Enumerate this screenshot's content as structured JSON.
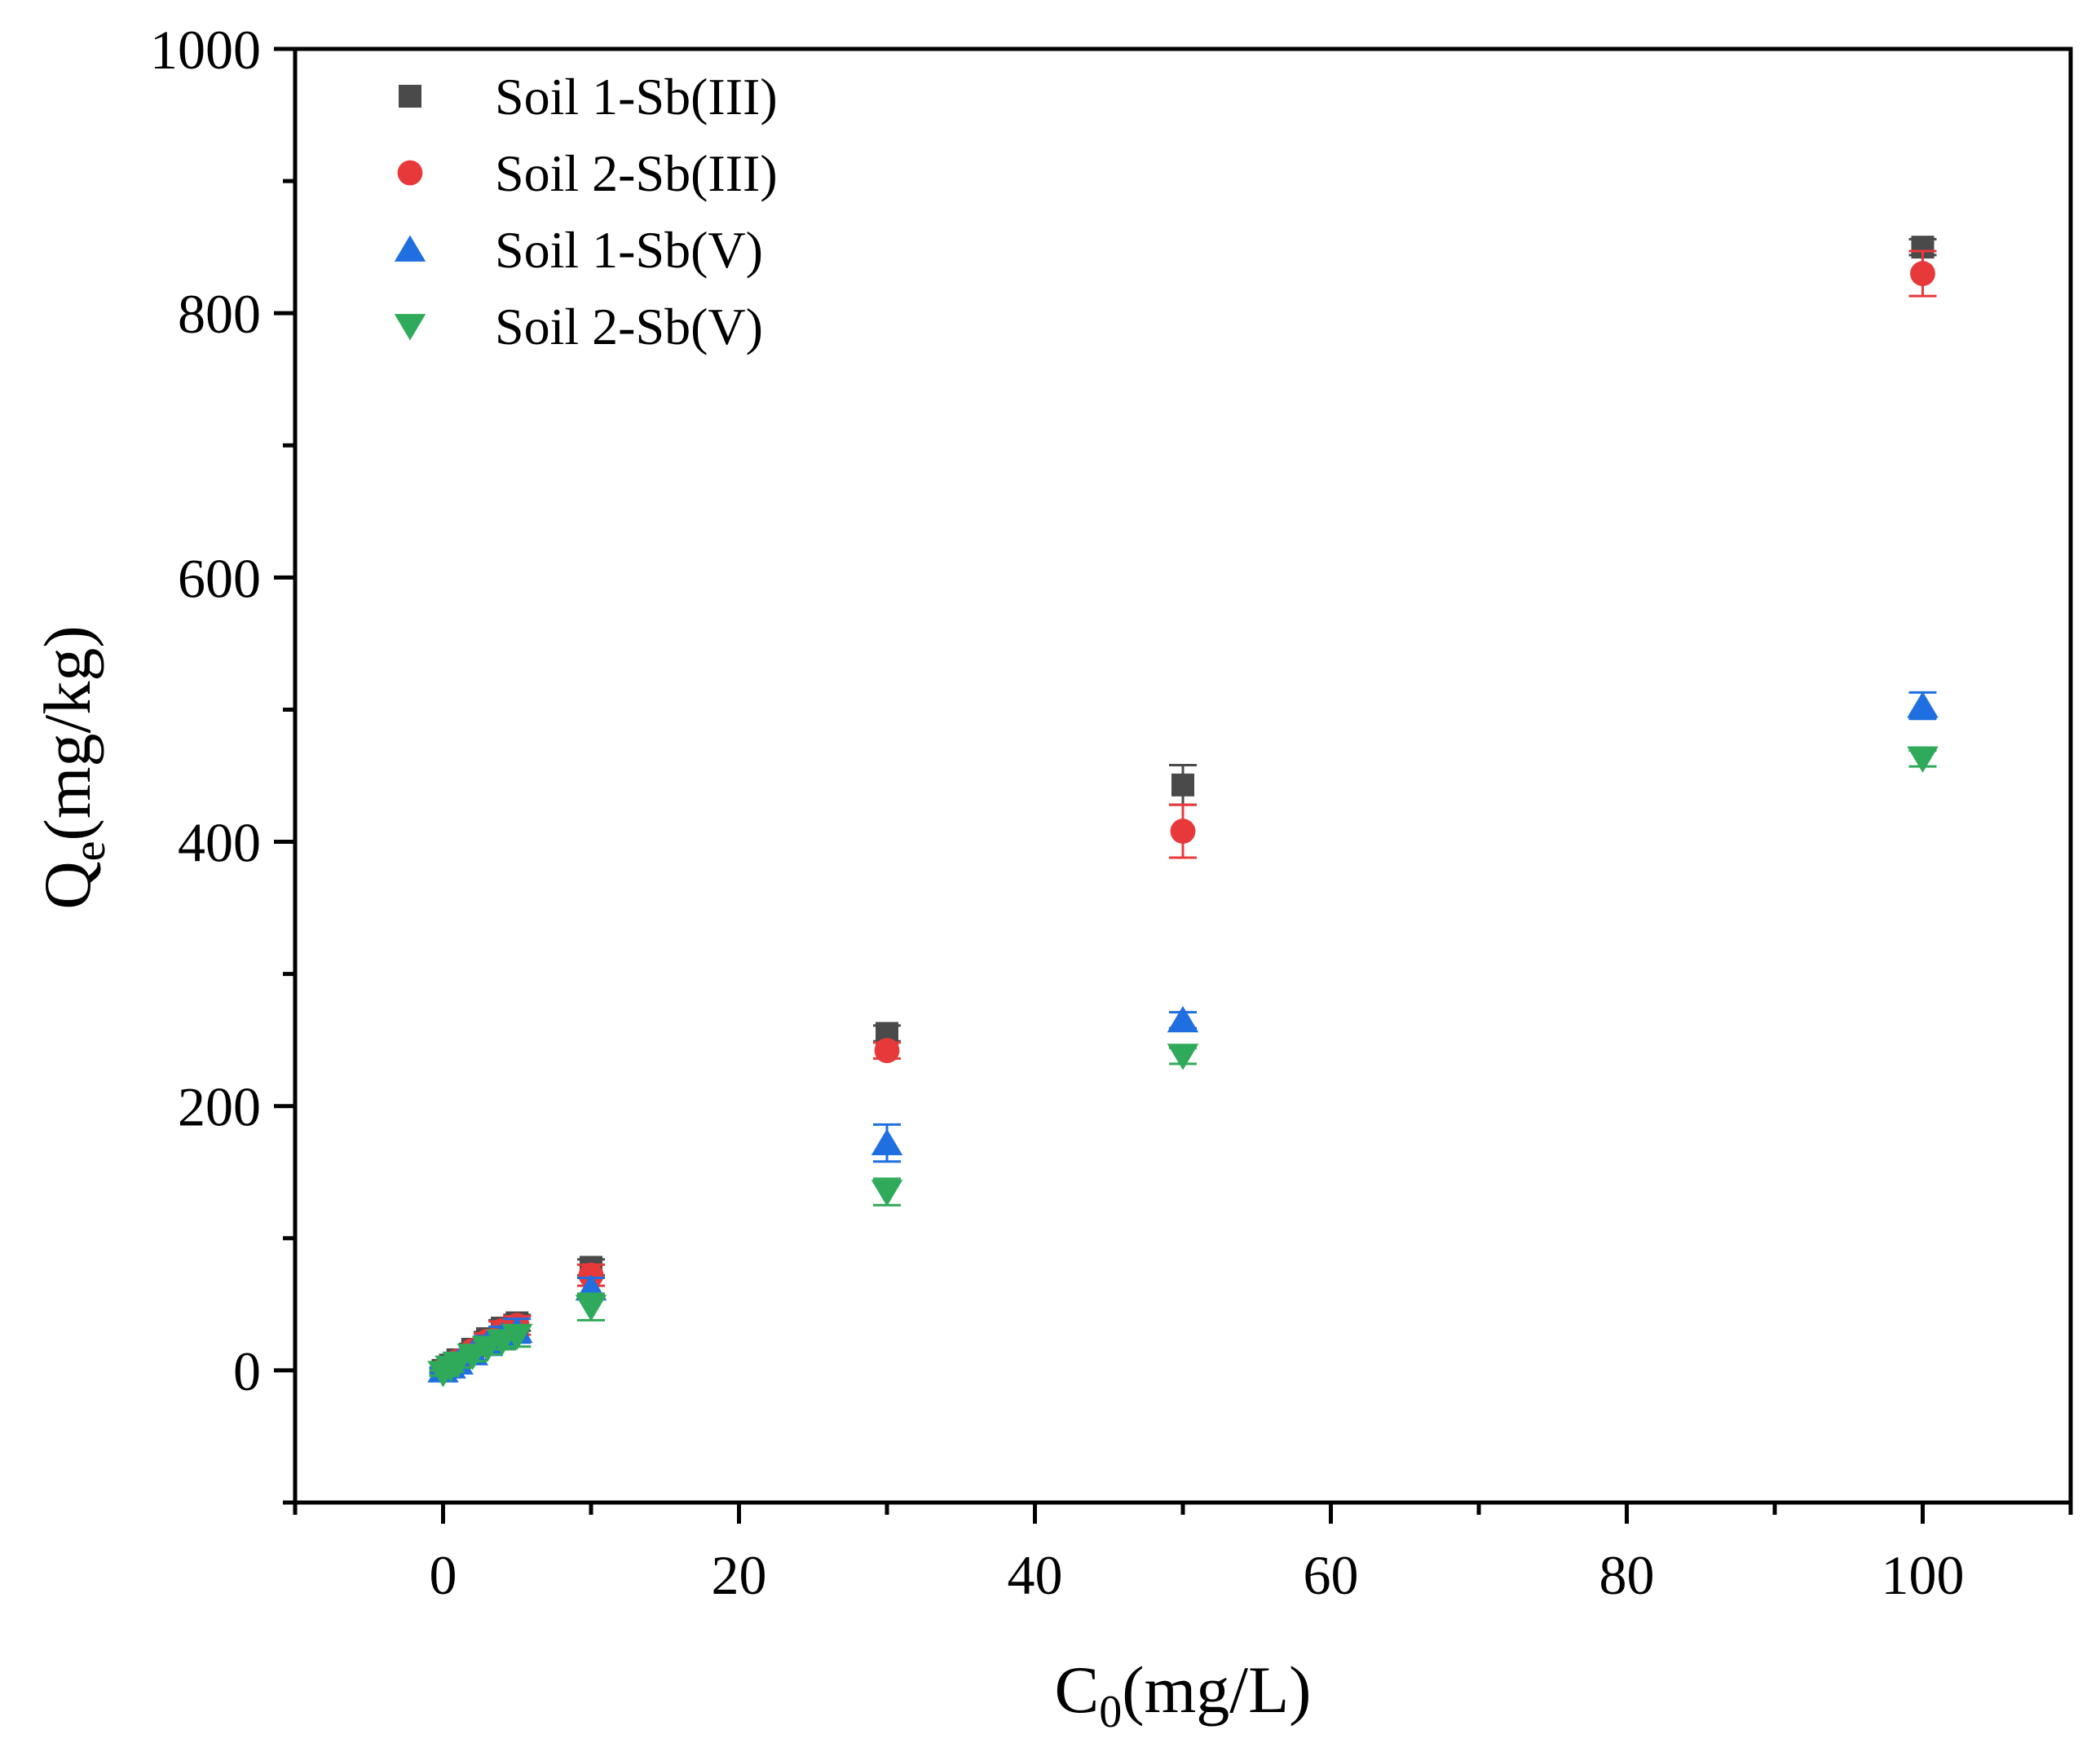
{
  "chart_data": {
    "type": "scatter",
    "title": "",
    "xlabel": {
      "main": "C",
      "sub": "0",
      "units": "(mg/L)"
    },
    "ylabel": {
      "main": "Q",
      "sub": "e",
      "units": "(mg/kg)"
    },
    "xlim": [
      -10,
      110
    ],
    "ylim": [
      -100,
      1000
    ],
    "x_ticks": [
      0,
      20,
      40,
      60,
      80,
      100
    ],
    "y_ticks": [
      0,
      200,
      400,
      600,
      800,
      1000
    ],
    "x_minor_step": 10,
    "y_minor_step": 100,
    "x_tick_labels": [
      "0",
      "20",
      "40",
      "60",
      "80",
      "100"
    ],
    "y_tick_labels": [
      "0",
      "200",
      "400",
      "600",
      "800",
      "1000"
    ],
    "grid": false,
    "legend_position": "top-left",
    "series": [
      {
        "name": "Soil 1-Sb(III)",
        "marker": "square",
        "color": "#4a4a4a",
        "x": [
          0,
          0.5,
          1,
          2,
          3,
          4,
          5,
          10,
          30,
          50,
          100
        ],
        "y": [
          0,
          4,
          8,
          16,
          24,
          32,
          36,
          78,
          255,
          443,
          850
        ],
        "err": [
          2,
          3,
          3,
          4,
          5,
          6,
          6,
          6,
          6,
          15,
          6
        ]
      },
      {
        "name": "Soil 2-Sb(III)",
        "marker": "circle",
        "color": "#e8393a",
        "x": [
          0,
          0.5,
          1,
          2,
          3,
          4,
          5,
          10,
          30,
          50,
          100
        ],
        "y": [
          0,
          3,
          7,
          15,
          22,
          30,
          34,
          72,
          242,
          408,
          830
        ],
        "err": [
          2,
          3,
          3,
          4,
          6,
          7,
          7,
          8,
          6,
          20,
          17
        ]
      },
      {
        "name": "Soil 1-Sb(V)",
        "marker": "triangle-up",
        "color": "#1f6fe0",
        "x": [
          0,
          0.5,
          1,
          2,
          3,
          4,
          5,
          10,
          30,
          50,
          100
        ],
        "y": [
          0,
          3,
          6,
          13,
          20,
          26,
          30,
          62,
          172,
          265,
          503
        ],
        "err": [
          2,
          3,
          4,
          5,
          6,
          7,
          9,
          8,
          14,
          6,
          10
        ]
      },
      {
        "name": "Soil 2-Sb(V)",
        "marker": "triangle-down",
        "color": "#2faa5a",
        "x": [
          0,
          0.5,
          1,
          2,
          3,
          4,
          5,
          10,
          30,
          50,
          100
        ],
        "y": [
          -2,
          2,
          5,
          11,
          17,
          22,
          26,
          48,
          135,
          238,
          463
        ],
        "err": [
          2,
          3,
          3,
          4,
          5,
          6,
          8,
          10,
          10,
          6,
          6
        ]
      }
    ]
  }
}
